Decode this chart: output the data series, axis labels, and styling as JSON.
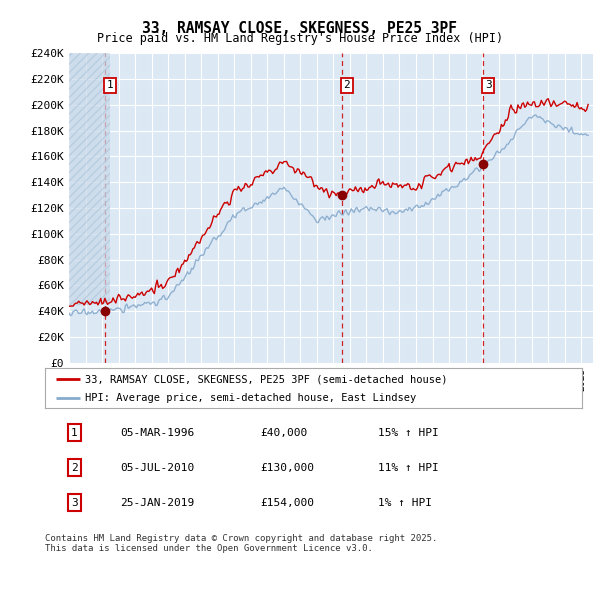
{
  "title": "33, RAMSAY CLOSE, SKEGNESS, PE25 3PF",
  "subtitle": "Price paid vs. HM Land Registry's House Price Index (HPI)",
  "ylim": [
    0,
    240000
  ],
  "yticks": [
    0,
    20000,
    40000,
    60000,
    80000,
    100000,
    120000,
    140000,
    160000,
    180000,
    200000,
    220000,
    240000
  ],
  "background_color": "#dce9f5",
  "grid_color": "#ffffff",
  "hatch_color": "#c8d8e8",
  "legend_entries": [
    "33, RAMSAY CLOSE, SKEGNESS, PE25 3PF (semi-detached house)",
    "HPI: Average price, semi-detached house, East Lindsey"
  ],
  "legend_colors": [
    "#cc0000",
    "#6699cc"
  ],
  "transactions": [
    {
      "num": 1,
      "date": "05-MAR-1996",
      "price": 40000,
      "hpi_pct": "15%",
      "x_year": 1996.17
    },
    {
      "num": 2,
      "date": "05-JUL-2010",
      "price": 130000,
      "hpi_pct": "11%",
      "x_year": 2010.51
    },
    {
      "num": 3,
      "date": "25-JAN-2019",
      "price": 154000,
      "hpi_pct": "1%",
      "x_year": 2019.07
    }
  ],
  "footer": "Contains HM Land Registry data © Crown copyright and database right 2025.\nThis data is licensed under the Open Government Licence v3.0.",
  "table_rows": [
    [
      "1",
      "05-MAR-1996",
      "£40,000",
      "15% ↑ HPI"
    ],
    [
      "2",
      "05-JUL-2010",
      "£130,000",
      "11% ↑ HPI"
    ],
    [
      "3",
      "25-JAN-2019",
      "£154,000",
      "1% ↑ HPI"
    ]
  ],
  "xlim": [
    1994,
    2025.5
  ],
  "prop_line_color": "#cc0000",
  "hpi_line_color": "#88aacc"
}
